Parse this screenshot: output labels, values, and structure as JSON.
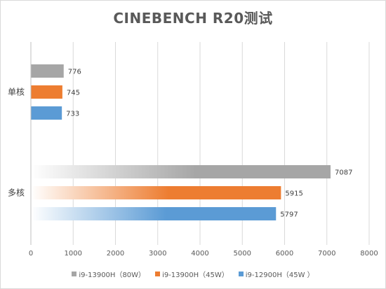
{
  "chart_data": {
    "type": "bar",
    "orientation": "horizontal",
    "title": "CINEBENCH R20测试",
    "categories": [
      "单核",
      "多核"
    ],
    "series": [
      {
        "name": "i9-13900H（80W）",
        "values": [
          776,
          7087
        ],
        "color": "#a6a6a6"
      },
      {
        "name": "i9-13900H（45W）",
        "values": [
          745,
          5915
        ],
        "color": "#ed7d31"
      },
      {
        "name": "i9-12900H（45W ）",
        "values": [
          733,
          5797
        ],
        "color": "#5b9bd5"
      }
    ],
    "xlim": [
      0,
      8000
    ],
    "xticks": [
      0,
      1000,
      2000,
      3000,
      4000,
      5000,
      6000,
      7000,
      8000
    ],
    "grid": true,
    "legend_position": "bottom",
    "xlabel": "",
    "ylabel": ""
  }
}
